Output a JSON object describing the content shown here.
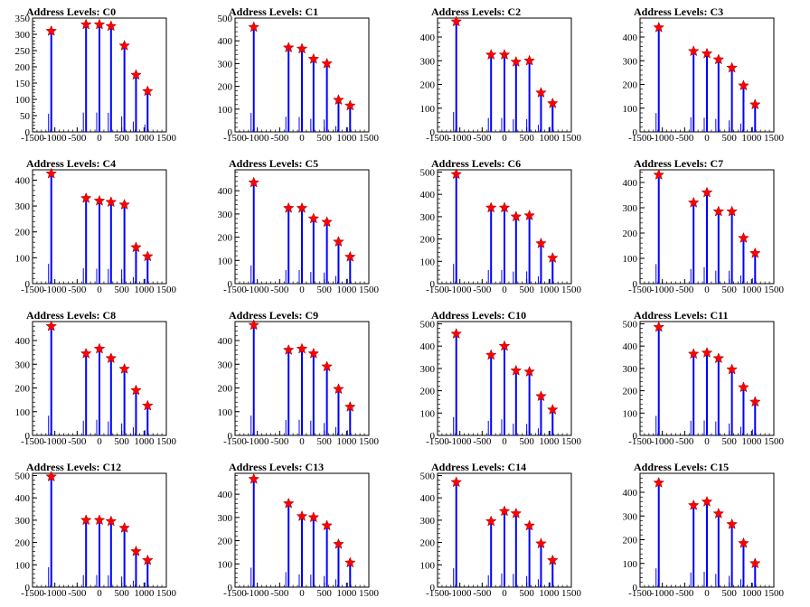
{
  "chart_data": [
    {
      "type": "bar",
      "title": "Address Levels: C0",
      "xlim": [
        -1500,
        1500
      ],
      "xticks": [
        "-1500",
        "-1000",
        "-500",
        "0",
        "500",
        "1000",
        "1500"
      ],
      "ylim": [
        0,
        350
      ],
      "yticks": [
        "0",
        "50",
        "100",
        "150",
        "200",
        "250",
        "300",
        "350"
      ],
      "peaks": [
        {
          "x": -1080,
          "y": 310
        },
        {
          "x": -300,
          "y": 330
        },
        {
          "x": 0,
          "y": 330
        },
        {
          "x": 260,
          "y": 325
        },
        {
          "x": 560,
          "y": 265
        },
        {
          "x": 820,
          "y": 175
        },
        {
          "x": 1080,
          "y": 125
        }
      ]
    },
    {
      "type": "bar",
      "title": "Address Levels: C1",
      "xlim": [
        -1500,
        1500
      ],
      "xticks": [
        "-1500",
        "-1000",
        "-500",
        "0",
        "500",
        "1000",
        "1500"
      ],
      "ylim": [
        0,
        500
      ],
      "yticks": [
        "0",
        "100",
        "200",
        "300",
        "400",
        "500"
      ],
      "peaks": [
        {
          "x": -1080,
          "y": 460
        },
        {
          "x": -300,
          "y": 370
        },
        {
          "x": 0,
          "y": 365
        },
        {
          "x": 260,
          "y": 320
        },
        {
          "x": 560,
          "y": 300
        },
        {
          "x": 820,
          "y": 140
        },
        {
          "x": 1080,
          "y": 115
        }
      ]
    },
    {
      "type": "bar",
      "title": "Address Levels: C2",
      "xlim": [
        -1500,
        1500
      ],
      "xticks": [
        "-1500",
        "-1000",
        "-500",
        "0",
        "500",
        "1000",
        "1500"
      ],
      "ylim": [
        0,
        480
      ],
      "yticks": [
        "0",
        "100",
        "200",
        "300",
        "400"
      ],
      "peaks": [
        {
          "x": -1080,
          "y": 465
        },
        {
          "x": -300,
          "y": 325
        },
        {
          "x": 0,
          "y": 325
        },
        {
          "x": 260,
          "y": 295
        },
        {
          "x": 560,
          "y": 300
        },
        {
          "x": 820,
          "y": 165
        },
        {
          "x": 1080,
          "y": 120
        }
      ]
    },
    {
      "type": "bar",
      "title": "Address Levels: C3",
      "xlim": [
        -1500,
        1500
      ],
      "xticks": [
        "-1500",
        "-1000",
        "-500",
        "0",
        "500",
        "1000",
        "1500"
      ],
      "ylim": [
        0,
        480
      ],
      "yticks": [
        "0",
        "100",
        "200",
        "300",
        "400"
      ],
      "peaks": [
        {
          "x": -1080,
          "y": 440
        },
        {
          "x": -300,
          "y": 340
        },
        {
          "x": 0,
          "y": 330
        },
        {
          "x": 260,
          "y": 305
        },
        {
          "x": 560,
          "y": 270
        },
        {
          "x": 820,
          "y": 195
        },
        {
          "x": 1080,
          "y": 115
        }
      ]
    },
    {
      "type": "bar",
      "title": "Address Levels: C4",
      "xlim": [
        -1500,
        1500
      ],
      "xticks": [
        "-1500",
        "-1000",
        "-500",
        "0",
        "500",
        "1000",
        "1500"
      ],
      "ylim": [
        0,
        440
      ],
      "yticks": [
        "0",
        "100",
        "200",
        "300",
        "400"
      ],
      "peaks": [
        {
          "x": -1080,
          "y": 425
        },
        {
          "x": -300,
          "y": 330
        },
        {
          "x": 0,
          "y": 320
        },
        {
          "x": 260,
          "y": 315
        },
        {
          "x": 560,
          "y": 305
        },
        {
          "x": 820,
          "y": 140
        },
        {
          "x": 1080,
          "y": 105
        }
      ]
    },
    {
      "type": "bar",
      "title": "Address Levels: C5",
      "xlim": [
        -1500,
        1500
      ],
      "xticks": [
        "-1500",
        "-1000",
        "-500",
        "0",
        "500",
        "1000",
        "1500"
      ],
      "ylim": [
        0,
        490
      ],
      "yticks": [
        "0",
        "100",
        "200",
        "300",
        "400"
      ],
      "peaks": [
        {
          "x": -1080,
          "y": 435
        },
        {
          "x": -300,
          "y": 325
        },
        {
          "x": 0,
          "y": 325
        },
        {
          "x": 260,
          "y": 280
        },
        {
          "x": 560,
          "y": 265
        },
        {
          "x": 820,
          "y": 180
        },
        {
          "x": 1080,
          "y": 115
        }
      ]
    },
    {
      "type": "bar",
      "title": "Address Levels: C6",
      "xlim": [
        -1500,
        1500
      ],
      "xticks": [
        "-1500",
        "-1000",
        "-500",
        "0",
        "500",
        "1000",
        "1500"
      ],
      "ylim": [
        0,
        510
      ],
      "yticks": [
        "0",
        "100",
        "200",
        "300",
        "400",
        "500"
      ],
      "peaks": [
        {
          "x": -1080,
          "y": 490
        },
        {
          "x": -300,
          "y": 340
        },
        {
          "x": 0,
          "y": 340
        },
        {
          "x": 260,
          "y": 300
        },
        {
          "x": 560,
          "y": 305
        },
        {
          "x": 820,
          "y": 180
        },
        {
          "x": 1080,
          "y": 115
        }
      ]
    },
    {
      "type": "bar",
      "title": "Address Levels: C7",
      "xlim": [
        -1500,
        1500
      ],
      "xticks": [
        "-1500",
        "-1000",
        "-500",
        "0",
        "500",
        "1000",
        "1500"
      ],
      "ylim": [
        0,
        450
      ],
      "yticks": [
        "0",
        "100",
        "200",
        "300",
        "400"
      ],
      "peaks": [
        {
          "x": -1080,
          "y": 430
        },
        {
          "x": -300,
          "y": 320
        },
        {
          "x": 0,
          "y": 360
        },
        {
          "x": 260,
          "y": 285
        },
        {
          "x": 560,
          "y": 285
        },
        {
          "x": 820,
          "y": 180
        },
        {
          "x": 1080,
          "y": 120
        }
      ]
    },
    {
      "type": "bar",
      "title": "Address Levels: C8",
      "xlim": [
        -1500,
        1500
      ],
      "xticks": [
        "-1500",
        "-1000",
        "-500",
        "0",
        "500",
        "1000",
        "1500"
      ],
      "ylim": [
        0,
        480
      ],
      "yticks": [
        "0",
        "100",
        "200",
        "300",
        "400"
      ],
      "peaks": [
        {
          "x": -1080,
          "y": 460
        },
        {
          "x": -300,
          "y": 345
        },
        {
          "x": 0,
          "y": 365
        },
        {
          "x": 260,
          "y": 325
        },
        {
          "x": 560,
          "y": 280
        },
        {
          "x": 820,
          "y": 190
        },
        {
          "x": 1080,
          "y": 125
        }
      ]
    },
    {
      "type": "bar",
      "title": "Address Levels: C9",
      "xlim": [
        -1500,
        1500
      ],
      "xticks": [
        "-1500",
        "-1000",
        "-500",
        "0",
        "500",
        "1000",
        "1500"
      ],
      "ylim": [
        0,
        480
      ],
      "yticks": [
        "0",
        "100",
        "200",
        "300",
        "400"
      ],
      "peaks": [
        {
          "x": -1080,
          "y": 465
        },
        {
          "x": -300,
          "y": 360
        },
        {
          "x": 0,
          "y": 365
        },
        {
          "x": 260,
          "y": 345
        },
        {
          "x": 560,
          "y": 290
        },
        {
          "x": 820,
          "y": 195
        },
        {
          "x": 1080,
          "y": 120
        }
      ]
    },
    {
      "type": "bar",
      "title": "Address Levels: C10",
      "xlim": [
        -1500,
        1500
      ],
      "xticks": [
        "-1500",
        "-1000",
        "-500",
        "0",
        "500",
        "1000",
        "1500"
      ],
      "ylim": [
        0,
        510
      ],
      "yticks": [
        "0",
        "100",
        "200",
        "300",
        "400",
        "500"
      ],
      "peaks": [
        {
          "x": -1080,
          "y": 455
        },
        {
          "x": -300,
          "y": 360
        },
        {
          "x": 0,
          "y": 400
        },
        {
          "x": 260,
          "y": 290
        },
        {
          "x": 560,
          "y": 285
        },
        {
          "x": 820,
          "y": 175
        },
        {
          "x": 1080,
          "y": 115
        }
      ]
    },
    {
      "type": "bar",
      "title": "Address Levels: C11",
      "xlim": [
        -1500,
        1500
      ],
      "xticks": [
        "-1500",
        "-1000",
        "-500",
        "0",
        "500",
        "1000",
        "1500"
      ],
      "ylim": [
        0,
        510
      ],
      "yticks": [
        "0",
        "100",
        "200",
        "300",
        "400",
        "500"
      ],
      "peaks": [
        {
          "x": -1080,
          "y": 485
        },
        {
          "x": -300,
          "y": 365
        },
        {
          "x": 0,
          "y": 370
        },
        {
          "x": 260,
          "y": 345
        },
        {
          "x": 560,
          "y": 295
        },
        {
          "x": 820,
          "y": 215
        },
        {
          "x": 1080,
          "y": 150
        }
      ]
    },
    {
      "type": "bar",
      "title": "Address Levels: C12",
      "xlim": [
        -1500,
        1500
      ],
      "xticks": [
        "-1500",
        "-1000",
        "-500",
        "0",
        "500",
        "1000",
        "1500"
      ],
      "ylim": [
        0,
        510
      ],
      "yticks": [
        "0",
        "100",
        "200",
        "300",
        "400",
        "500"
      ],
      "peaks": [
        {
          "x": -1080,
          "y": 495
        },
        {
          "x": -300,
          "y": 300
        },
        {
          "x": 0,
          "y": 300
        },
        {
          "x": 260,
          "y": 295
        },
        {
          "x": 560,
          "y": 265
        },
        {
          "x": 820,
          "y": 160
        },
        {
          "x": 1080,
          "y": 120
        }
      ]
    },
    {
      "type": "bar",
      "title": "Address Levels: C13",
      "xlim": [
        -1500,
        1500
      ],
      "xticks": [
        "-1500",
        "-1000",
        "-500",
        "0",
        "500",
        "1000",
        "1500"
      ],
      "ylim": [
        0,
        490
      ],
      "yticks": [
        "0",
        "100",
        "200",
        "300",
        "400"
      ],
      "peaks": [
        {
          "x": -1080,
          "y": 465
        },
        {
          "x": -300,
          "y": 360
        },
        {
          "x": 0,
          "y": 305
        },
        {
          "x": 260,
          "y": 300
        },
        {
          "x": 560,
          "y": 265
        },
        {
          "x": 820,
          "y": 185
        },
        {
          "x": 1080,
          "y": 105
        }
      ]
    },
    {
      "type": "bar",
      "title": "Address Levels: C14",
      "xlim": [
        -1500,
        1500
      ],
      "xticks": [
        "-1500",
        "-1000",
        "-500",
        "0",
        "500",
        "1000",
        "1500"
      ],
      "ylim": [
        0,
        510
      ],
      "yticks": [
        "0",
        "100",
        "200",
        "300",
        "400",
        "500"
      ],
      "peaks": [
        {
          "x": -1080,
          "y": 470
        },
        {
          "x": -300,
          "y": 295
        },
        {
          "x": 0,
          "y": 340
        },
        {
          "x": 260,
          "y": 330
        },
        {
          "x": 560,
          "y": 275
        },
        {
          "x": 820,
          "y": 195
        },
        {
          "x": 1080,
          "y": 120
        }
      ]
    },
    {
      "type": "bar",
      "title": "Address Levels: C15",
      "xlim": [
        -1500,
        1500
      ],
      "xticks": [
        "-1500",
        "-1000",
        "-500",
        "0",
        "500",
        "1000",
        "1500"
      ],
      "ylim": [
        0,
        480
      ],
      "yticks": [
        "0",
        "100",
        "200",
        "300",
        "400"
      ],
      "peaks": [
        {
          "x": -1080,
          "y": 440
        },
        {
          "x": -300,
          "y": 345
        },
        {
          "x": 0,
          "y": 360
        },
        {
          "x": 260,
          "y": 310
        },
        {
          "x": 560,
          "y": 265
        },
        {
          "x": 820,
          "y": 185
        },
        {
          "x": 1080,
          "y": 100
        }
      ]
    }
  ],
  "colors": {
    "bars": "#0000ff",
    "markers": "#ff0000",
    "axes": "#000000"
  },
  "marker_icon": "star-marker"
}
